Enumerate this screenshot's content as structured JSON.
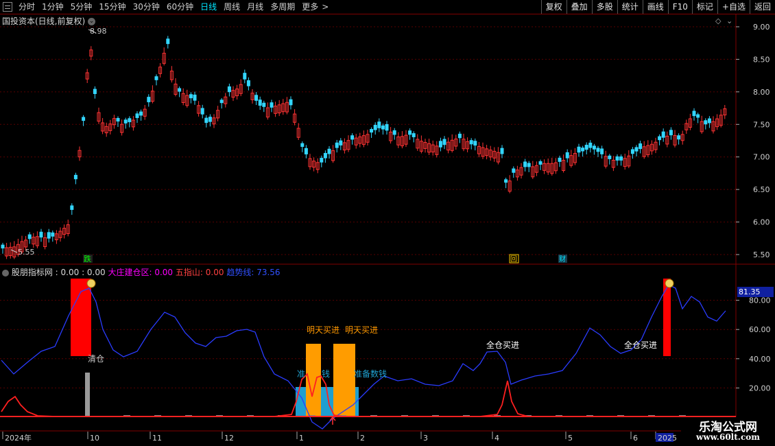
{
  "toolbar": {
    "periods": [
      "分时",
      "1分钟",
      "5分钟",
      "15分钟",
      "30分钟",
      "60分钟",
      "日线",
      "周线",
      "月线",
      "多周期",
      "更多"
    ],
    "active_period": "日线",
    "more_arrow": ">",
    "right_buttons": [
      "复权",
      "叠加",
      "多股",
      "统计",
      "画线",
      "F10",
      "标记",
      "+自选",
      "返回"
    ]
  },
  "main_panel": {
    "title": "国投资本(日线,前复权)",
    "high_label": "8.98",
    "low_label": "5.55",
    "price_axis": [
      "9.00",
      "8.50",
      "8.00",
      "7.50",
      "7.00",
      "6.50",
      "6.00",
      "5.50"
    ],
    "markers": [
      {
        "text": "跌",
        "color": "#00ff00"
      },
      {
        "text": "回",
        "color": "#ffcc00"
      },
      {
        "text": "财",
        "color": "#00e5ff"
      }
    ]
  },
  "indicator_panel": {
    "name": "股朋指标网",
    "values_text": ": 0.00 : 0.00",
    "items": [
      {
        "label": "大庄建仓区:",
        "value": "0.00",
        "color": "#ff00ff"
      },
      {
        "label": "五指山:",
        "value": "0.00",
        "color": "#ff4040"
      },
      {
        "label": "趋势线:",
        "value": "73.56",
        "color": "#3050ff"
      }
    ],
    "axis": [
      "80.00",
      "60.00",
      "40.00",
      "20.00"
    ],
    "current_value": "81.35",
    "annotations": {
      "clear": "清仓",
      "buy_tomorrow_1": "明天买进",
      "buy_tomorrow_2": "明天买进",
      "full_buy_1": "全仓买进",
      "full_buy_2": "全仓买进",
      "prepare_1": "准",
      "prepare_1b": "钱",
      "prepare_2": "准备数钱"
    }
  },
  "time_axis": [
    "2024年",
    "10",
    "11",
    "12",
    "1",
    "2",
    "3",
    "4",
    "5",
    "6",
    "2025"
  ],
  "watermark": {
    "line1": "乐淘公式网",
    "line2": "www.60lt.com"
  },
  "colors": {
    "up": "#ff3333",
    "down": "#33d6ff",
    "trend": "#2a3cff",
    "grid": "#5a0000",
    "axis": "#aaaaaa"
  }
}
